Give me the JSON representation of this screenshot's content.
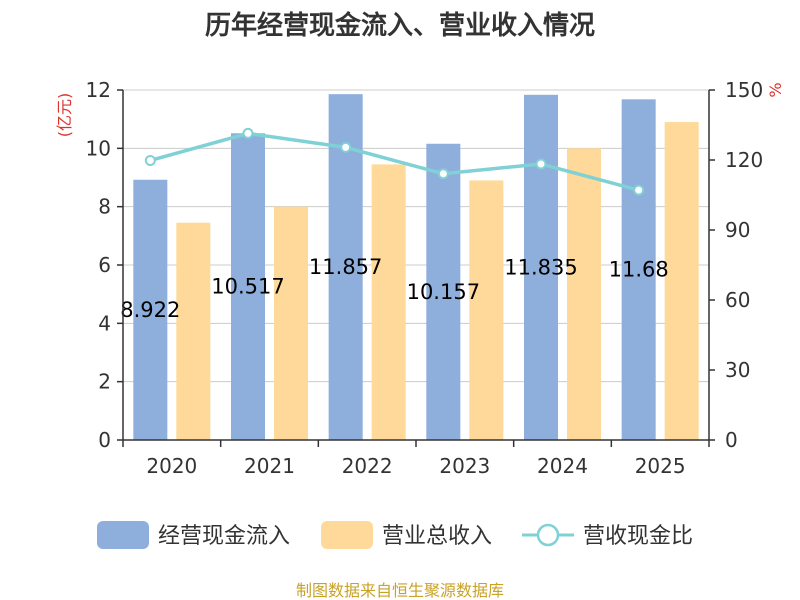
{
  "colors": {
    "cash_inflow": "#8eaedc",
    "revenue": "#fed999",
    "ratio": "#7fd1d6",
    "unit_label": "#e0312b",
    "source_text": "#c9a227",
    "axis": "#333333",
    "grid": "#cccccc"
  },
  "source": "制图数据来自恒生聚源数据库",
  "chart_data": {
    "type": "bar",
    "title": "历年经营现金流入、营业收入情况",
    "categories": [
      "2020",
      "2021",
      "2022",
      "2023",
      "2024",
      "2025"
    ],
    "ylabel_left": "(亿元)",
    "ylabel_right": "%",
    "ylim_left": [
      0,
      12
    ],
    "ylim_right": [
      0,
      150
    ],
    "yticks_left": [
      "0",
      "2",
      "4",
      "6",
      "8",
      "10",
      "12"
    ],
    "yticks_right": [
      "0",
      "30",
      "60",
      "90",
      "120",
      "150"
    ],
    "grid": true,
    "legend_position": "bottom",
    "series": [
      {
        "name": "经营现金流入",
        "type": "bar",
        "axis": "left",
        "values": [
          8.922,
          10.517,
          11.857,
          10.157,
          11.835,
          11.68
        ],
        "labels": [
          "8.922",
          "10.517",
          "11.857",
          "10.157",
          "11.835",
          "11.68"
        ]
      },
      {
        "name": "营业总收入",
        "type": "bar",
        "axis": "left",
        "values": [
          7.45,
          8.0,
          9.45,
          8.9,
          10.0,
          10.9
        ]
      },
      {
        "name": "营收现金比",
        "type": "line",
        "axis": "right",
        "values": [
          119.8,
          131.4,
          125.4,
          114.1,
          118.3,
          107.1
        ]
      }
    ]
  }
}
